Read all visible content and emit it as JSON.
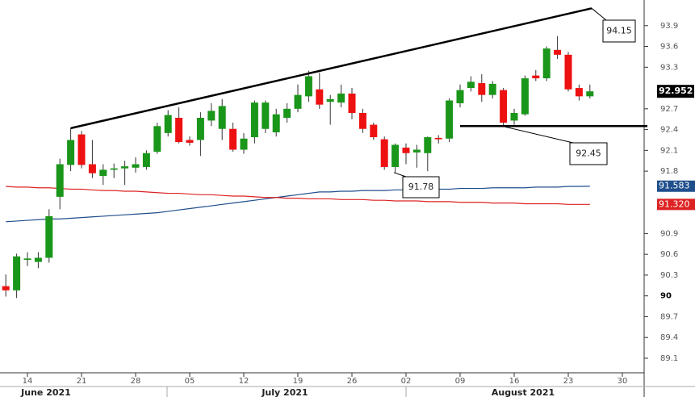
{
  "chart_data": {
    "type": "candlestick",
    "categories": [
      null,
      null,
      "14",
      null,
      null,
      null,
      null,
      "21",
      null,
      null,
      null,
      null,
      "28",
      null,
      null,
      null,
      null,
      "05",
      null,
      null,
      null,
      null,
      "12",
      null,
      null,
      null,
      null,
      "19",
      null,
      null,
      null,
      null,
      "26",
      null,
      null,
      null,
      null,
      "02",
      null,
      null,
      null,
      null,
      "09",
      null,
      null,
      null,
      null,
      "16",
      null,
      null,
      null,
      null,
      "23",
      null,
      null,
      null,
      null,
      "30",
      null,
      null
    ],
    "months": [
      "June 2021",
      "July 2021",
      "August 2021"
    ],
    "open": [
      90.14,
      90.08,
      90.52,
      90.49,
      90.55,
      91.43,
      91.89,
      92.33,
      91.9,
      91.73,
      91.82,
      91.84,
      91.85,
      91.86,
      92.08,
      92.35,
      92.57,
      92.25,
      92.25,
      92.53,
      92.41,
      92.41,
      92.11,
      92.29,
      92.41,
      92.36,
      92.57,
      92.7,
      92.88,
      92.98,
      92.8,
      92.79,
      92.92,
      92.64,
      92.47,
      92.26,
      91.86,
      92.14,
      92.07,
      92.06,
      92.28,
      92.27,
      92.78,
      93.0,
      93.07,
      92.9,
      92.97,
      92.53,
      92.62,
      93.18,
      93.14,
      93.55,
      93.48,
      93.0,
      92.88,
      null,
      null,
      null,
      null,
      null
    ],
    "high": [
      90.31,
      90.61,
      90.63,
      90.63,
      91.25,
      91.98,
      92.42,
      92.38,
      92.25,
      91.9,
      91.91,
      91.95,
      92.0,
      92.1,
      92.5,
      92.68,
      92.72,
      92.3,
      92.65,
      92.78,
      92.84,
      92.5,
      92.35,
      92.82,
      92.82,
      92.7,
      92.78,
      93.05,
      93.25,
      93.22,
      92.9,
      93.05,
      93.0,
      92.7,
      92.5,
      92.3,
      92.2,
      92.2,
      92.18,
      92.3,
      92.32,
      92.85,
      93.05,
      93.17,
      93.2,
      93.1,
      93.0,
      92.7,
      93.18,
      93.26,
      93.6,
      93.75,
      93.52,
      93.05,
      93.05,
      null,
      null,
      null,
      null,
      null
    ],
    "low": [
      89.99,
      89.97,
      90.43,
      90.4,
      90.48,
      91.25,
      91.8,
      91.84,
      91.7,
      91.6,
      91.7,
      91.6,
      91.78,
      91.82,
      92.05,
      92.3,
      92.2,
      92.17,
      92.02,
      92.45,
      92.25,
      92.08,
      92.05,
      92.2,
      92.35,
      92.3,
      92.5,
      92.65,
      92.8,
      92.7,
      92.47,
      92.72,
      92.55,
      92.35,
      92.25,
      91.82,
      91.78,
      91.9,
      91.85,
      91.8,
      92.2,
      92.22,
      92.72,
      92.95,
      92.8,
      92.85,
      92.45,
      92.47,
      92.6,
      93.1,
      93.1,
      93.42,
      92.95,
      92.82,
      92.85,
      null,
      null,
      null,
      null,
      null
    ],
    "close": [
      90.08,
      90.57,
      90.54,
      90.55,
      91.15,
      91.9,
      92.25,
      91.89,
      91.77,
      91.82,
      91.84,
      91.87,
      91.9,
      92.06,
      92.45,
      92.61,
      92.22,
      92.21,
      92.57,
      92.67,
      92.74,
      92.11,
      92.27,
      92.79,
      92.79,
      92.62,
      92.7,
      92.9,
      93.17,
      92.76,
      92.84,
      92.92,
      92.64,
      92.41,
      92.29,
      91.86,
      92.18,
      92.06,
      92.11,
      92.29,
      92.26,
      92.82,
      92.97,
      93.09,
      92.9,
      93.06,
      92.5,
      92.64,
      93.14,
      93.14,
      93.57,
      93.48,
      92.98,
      92.88,
      92.952,
      null,
      null,
      null,
      null,
      null
    ],
    "up_color": "#1a961a",
    "down_color": "#ee1111",
    "series": [
      {
        "color": "#1f4e8c",
        "last_label": "91.583",
        "values": [
          91.07,
          91.08,
          91.09,
          91.1,
          91.11,
          91.11,
          91.12,
          91.13,
          91.14,
          91.15,
          91.16,
          91.17,
          91.18,
          91.19,
          91.2,
          91.22,
          91.24,
          91.26,
          91.28,
          91.3,
          91.32,
          91.34,
          91.36,
          91.38,
          91.4,
          91.42,
          91.44,
          91.46,
          91.48,
          91.5,
          91.5,
          91.51,
          91.51,
          91.52,
          91.52,
          91.52,
          91.53,
          91.53,
          91.53,
          91.54,
          91.54,
          91.54,
          91.55,
          91.55,
          91.55,
          91.56,
          91.56,
          91.56,
          91.56,
          91.57,
          91.57,
          91.57,
          91.58,
          91.58,
          91.583,
          null,
          null,
          null,
          null,
          null
        ]
      },
      {
        "color": "#dd2222",
        "last_label": "91.320",
        "values": [
          91.58,
          91.57,
          91.57,
          91.56,
          91.56,
          91.55,
          91.54,
          91.54,
          91.53,
          91.52,
          91.52,
          91.51,
          91.51,
          91.5,
          91.49,
          91.48,
          91.48,
          91.47,
          91.46,
          91.46,
          91.45,
          91.44,
          91.44,
          91.43,
          91.42,
          91.42,
          91.41,
          91.41,
          91.4,
          91.4,
          91.4,
          91.39,
          91.39,
          91.39,
          91.38,
          91.38,
          91.37,
          91.37,
          91.37,
          91.36,
          91.36,
          91.36,
          91.35,
          91.35,
          91.35,
          91.34,
          91.34,
          91.34,
          91.33,
          91.33,
          91.33,
          91.33,
          91.32,
          91.32,
          91.32,
          null,
          null,
          null,
          null,
          null
        ]
      }
    ],
    "annotations": [
      {
        "label": "94.15",
        "value": 94.15
      },
      {
        "label": "92.45",
        "value": 92.45
      },
      {
        "label": "91.78",
        "value": 91.78
      }
    ],
    "trendline": {
      "from": 92.42,
      "to": 94.15
    },
    "ylim": [
      88.89,
      94.27
    ],
    "yticks": [
      89.1,
      89.4,
      89.7,
      90,
      90.3,
      90.6,
      90.9,
      91.8,
      92.1,
      92.4,
      92.7,
      93.3,
      93.6,
      93.9
    ]
  }
}
